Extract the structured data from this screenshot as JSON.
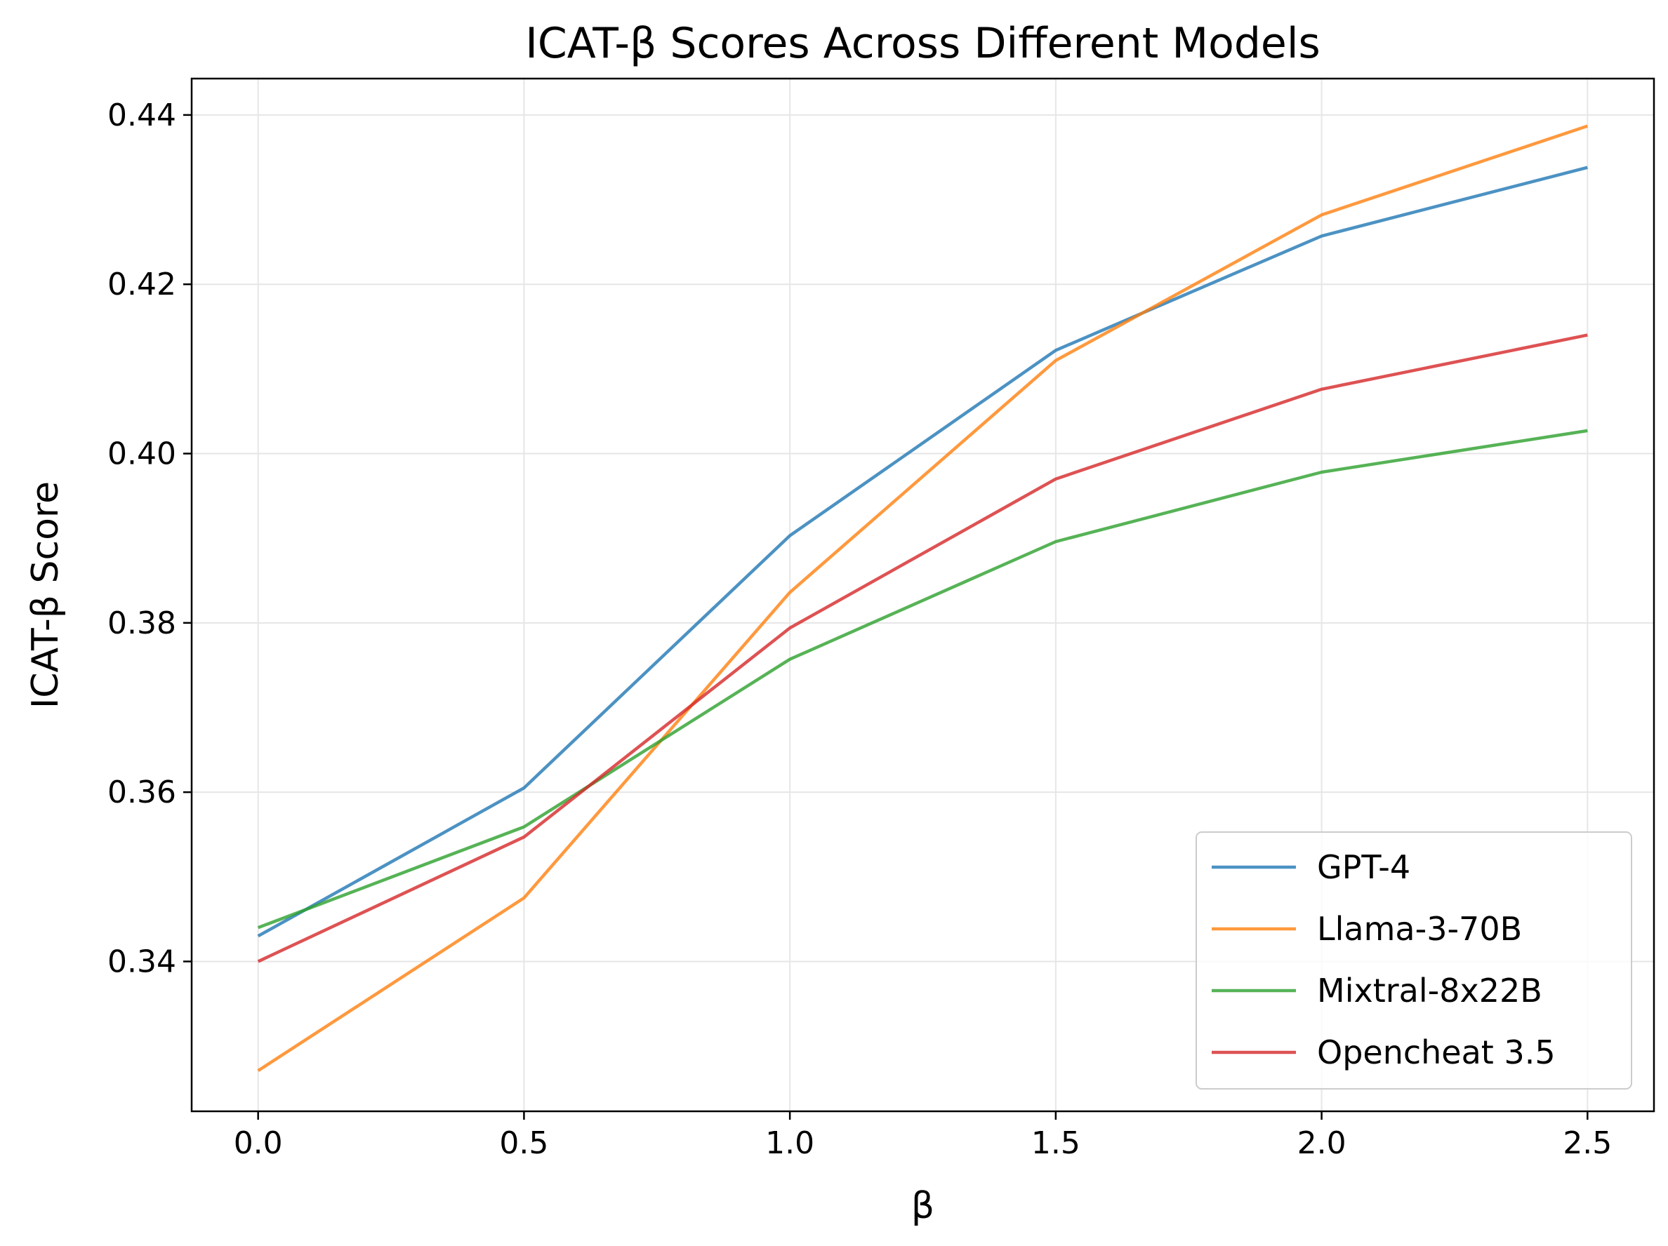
{
  "chart_data": {
    "type": "line",
    "title": "ICAT-β Scores Across Different Models",
    "xlabel": "β",
    "ylabel": "ICAT-β Score",
    "x": [
      0.0,
      0.5,
      1.0,
      1.5,
      2.0,
      2.5
    ],
    "x_tick_labels": [
      "0.0",
      "0.5",
      "1.0",
      "1.5",
      "2.0",
      "2.5"
    ],
    "y_ticks": [
      0.34,
      0.36,
      0.38,
      0.4,
      0.42,
      0.44
    ],
    "y_tick_labels": [
      "0.34",
      "0.36",
      "0.38",
      "0.40",
      "0.42",
      "0.44"
    ],
    "xlim": [
      -0.125,
      2.625
    ],
    "ylim": [
      0.3223,
      0.4443
    ],
    "grid": true,
    "legend_position": "lower-right",
    "series": [
      {
        "name": "GPT-4",
        "color": "#1f77b4",
        "values": [
          0.343,
          0.3605,
          0.3903,
          0.4122,
          0.4257,
          0.4338
        ]
      },
      {
        "name": "Llama-3-70B",
        "color": "#ff7f0e",
        "values": [
          0.3271,
          0.3475,
          0.3836,
          0.411,
          0.4282,
          0.4387
        ]
      },
      {
        "name": "Mixtral-8x22B",
        "color": "#2ca02c",
        "values": [
          0.344,
          0.3559,
          0.3757,
          0.3896,
          0.3978,
          0.4027
        ]
      },
      {
        "name": "Opencheat 3.5",
        "color": "#d62728",
        "values": [
          0.34,
          0.3547,
          0.3794,
          0.397,
          0.4076,
          0.414
        ]
      }
    ]
  }
}
